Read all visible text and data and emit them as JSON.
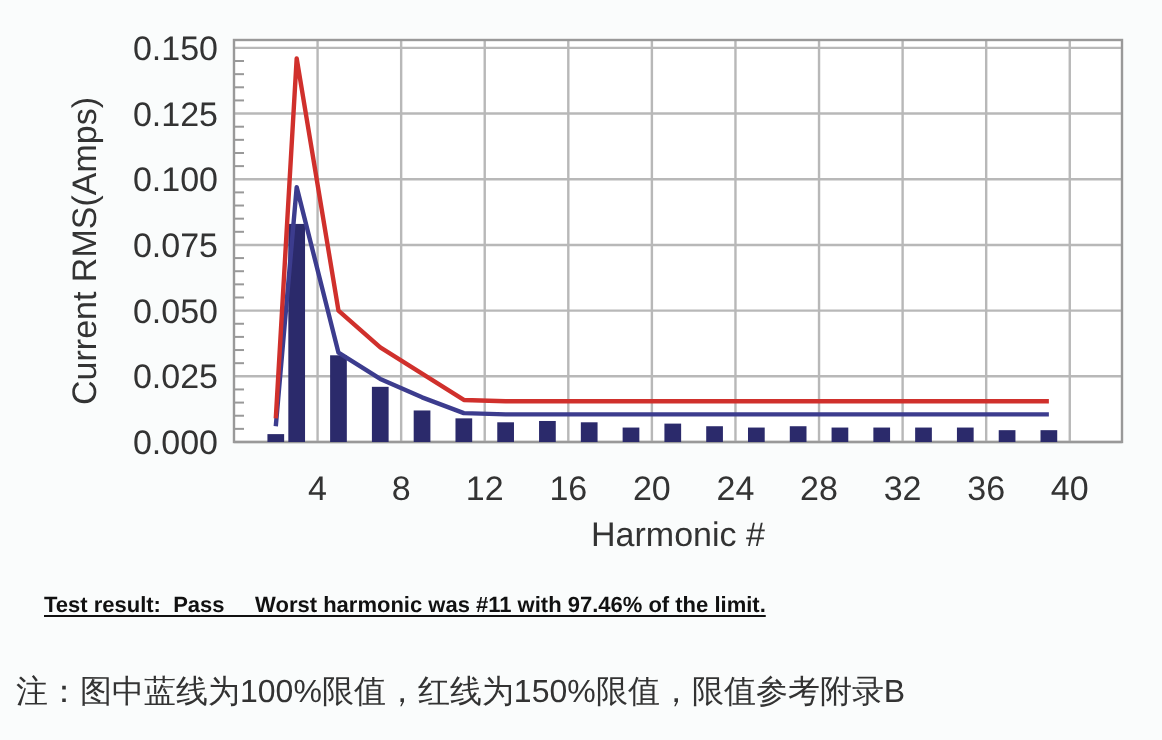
{
  "chart_data": {
    "type": "bar",
    "xlabel": "Harmonic #",
    "ylabel": "Current RMS(Amps)",
    "x": [
      2,
      3,
      5,
      7,
      9,
      11,
      13,
      15,
      17,
      19,
      21,
      23,
      25,
      27,
      29,
      31,
      33,
      35,
      37,
      39
    ],
    "series": [
      {
        "color": "#2b2a6b",
        "values": [
          0.003,
          0.083,
          0.033,
          0.021,
          0.012,
          0.009,
          0.0075,
          0.008,
          0.0075,
          0.0055,
          0.007,
          0.006,
          0.0055,
          0.006,
          0.0055,
          0.0055,
          0.0055,
          0.0055,
          0.0045,
          0.0045
        ]
      },
      {
        "type": "line",
        "color": "#3c3c8e",
        "values": [
          0.006,
          0.097,
          0.034,
          0.024,
          0.017,
          0.011,
          0.0105,
          0.0105,
          0.0105,
          0.0105,
          0.0105,
          0.0105,
          0.0105,
          0.0105,
          0.0105,
          0.0105,
          0.0105,
          0.0105,
          0.0105,
          0.0105
        ]
      },
      {
        "type": "line",
        "color": "#d0302c",
        "values": [
          0.009,
          0.146,
          0.05,
          0.036,
          0.026,
          0.016,
          0.0155,
          0.0155,
          0.0155,
          0.0155,
          0.0155,
          0.0155,
          0.0155,
          0.0155,
          0.0155,
          0.0155,
          0.0155,
          0.0155,
          0.0155,
          0.0155
        ]
      }
    ],
    "xlim": [
      0,
      42.5
    ],
    "xticks": [
      4,
      8,
      12,
      16,
      20,
      24,
      28,
      32,
      36,
      40
    ],
    "ylim": [
      0,
      0.153
    ],
    "yticks": [
      {
        "value": 0,
        "label": "0.000"
      },
      {
        "value": 0.025,
        "label": "0.025"
      },
      {
        "value": 0.05,
        "label": "0.050"
      },
      {
        "value": 0.075,
        "label": "0.075"
      },
      {
        "value": 0.1,
        "label": "0.100"
      },
      {
        "value": 0.125,
        "label": "0.125"
      },
      {
        "value": 0.15,
        "label": "0.150"
      }
    ],
    "grid": true,
    "annotations": [
      "Test result:  Pass     Worst harmonic was #11 with 97.46% of the limit.",
      "注：图中蓝线为100%限值，红线为150%限值，限值参考附录B"
    ]
  }
}
